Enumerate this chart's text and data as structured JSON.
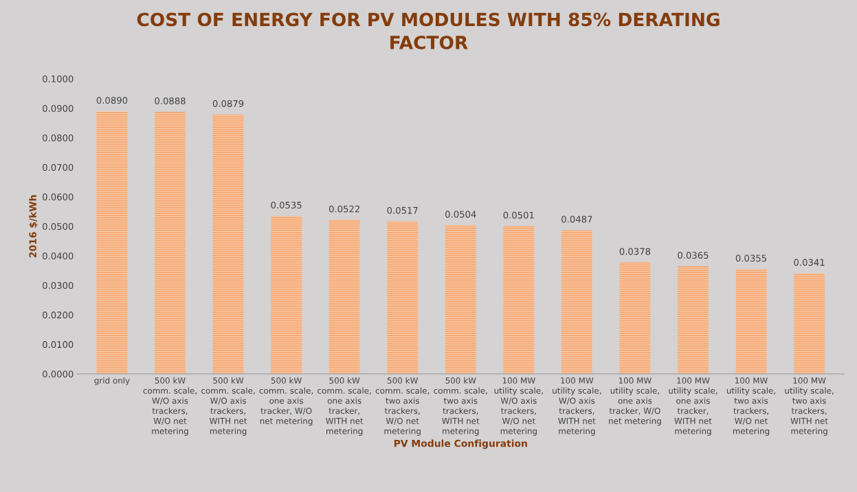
{
  "chart_data": {
    "type": "bar",
    "title": "COST OF ENERGY FOR PV MODULES WITH 85% DERATING\nFACTOR",
    "xlabel": "PV Module Configuration",
    "ylabel": "2016 $/kWh",
    "categories": [
      "grid only",
      "500 kW\ncomm. scale,\nW/O axis\ntrackers,\nW/O net\nmetering",
      "500 kW\ncomm. scale,\nW/O axis\ntrackers,\nWITH net\nmetering",
      "500 kW\ncomm. scale,\none axis\ntracker, W/O\nnet metering",
      "500 kW\ncomm. scale,\none axis\ntracker,\nWITH net\nmetering",
      "500 kW\ncomm. scale,\ntwo axis\ntrackers,\nW/O net\nmetering",
      "500 kW\ncomm. scale,\ntwo axis\ntrackers,\nWITH net\nmetering",
      "100 MW\nutility scale,\nW/O axis\ntrackers,\nW/O net\nmetering",
      "100 MW\nutility scale,\nW/O axis\ntrackers,\nWITH net\nmetering",
      "100 MW\nutility scale,\none axis\ntracker, W/O\nnet metering",
      "100 MW\nutility scale,\none axis\ntracker,\nWITH net\nmetering",
      "100 MW\nutility scale,\ntwo axis\ntrackers,\nW/O net\nmetering",
      "100 MW\nutility scale,\ntwo axis\ntrackers,\nWITH net\nmetering"
    ],
    "values": [
      0.089,
      0.0888,
      0.0879,
      0.0535,
      0.0522,
      0.0517,
      0.0504,
      0.0501,
      0.0487,
      0.0378,
      0.0365,
      0.0355,
      0.0341
    ],
    "value_labels": [
      "0.0890",
      "0.0888",
      "0.0879",
      "0.0535",
      "0.0522",
      "0.0517",
      "0.0504",
      "0.0501",
      "0.0487",
      "0.0378",
      "0.0365",
      "0.0355",
      "0.0341"
    ],
    "color": "#f4a46c",
    "ylim": [
      0,
      0.1
    ],
    "yticks": [
      {
        "value": 0,
        "label": "0.0000"
      },
      {
        "value": 0.01,
        "label": "0.0100"
      },
      {
        "value": 0.02,
        "label": "0.0200"
      },
      {
        "value": 0.03,
        "label": "0.0300"
      },
      {
        "value": 0.04,
        "label": "0.0400"
      },
      {
        "value": 0.05,
        "label": "0.0500"
      },
      {
        "value": 0.06,
        "label": "0.0600"
      },
      {
        "value": 0.07,
        "label": "0.0700"
      },
      {
        "value": 0.08,
        "label": "0.0800"
      },
      {
        "value": 0.09,
        "label": "0.0900"
      },
      {
        "value": 0.1,
        "label": "0.1000"
      }
    ],
    "grid": false,
    "legend": false
  }
}
